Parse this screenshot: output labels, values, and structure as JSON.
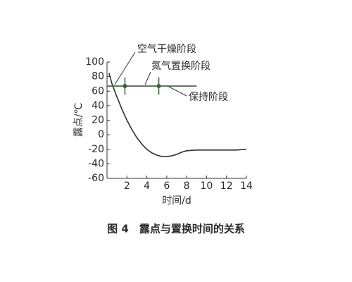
{
  "chart_data": {
    "type": "line",
    "caption": "图 4　露点与置换时间的关系",
    "x_label": "时间/d",
    "y_label": "露点/℃",
    "xlim": [
      0,
      14
    ],
    "xticks": [
      2,
      4,
      6,
      8,
      10,
      12,
      14
    ],
    "ylim": [
      -60,
      100
    ],
    "yticks": [
      -60,
      -40,
      -20,
      0,
      20,
      40,
      60,
      80,
      100
    ],
    "annotations": [
      {
        "text": "空气干燥阶段"
      },
      {
        "text": "氮气置换阶段"
      },
      {
        "text": "保持阶段"
      }
    ],
    "series": [
      {
        "color": "#2e2e2e",
        "x": [
          0.2,
          0.5,
          1,
          1.5,
          2,
          2.5,
          3,
          3.5,
          4,
          4.5,
          5,
          5.5,
          6,
          6.5,
          7,
          7.5,
          8,
          9,
          10,
          11,
          12,
          13,
          14
        ],
        "values": [
          85,
          70,
          52,
          35,
          20,
          7,
          -4,
          -13,
          -20,
          -25,
          -28,
          -30,
          -30,
          -29,
          -27,
          -24,
          -22,
          -21,
          -21,
          -21,
          -21,
          -21,
          -20
        ]
      },
      {
        "color": "#3b5e3b",
        "x": [
          0,
          9
        ],
        "values": [
          67,
          67
        ]
      },
      {
        "color": "#3b5e3b",
        "x": [
          1.8,
          5.2
        ],
        "values": [
          67,
          67
        ],
        "errors": [
          12,
          12
        ]
      }
    ]
  }
}
